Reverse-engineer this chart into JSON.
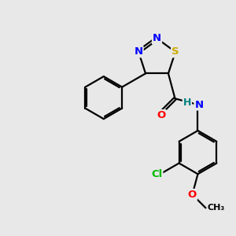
{
  "bg_color": "#e8e8e8",
  "bond_color": "#000000",
  "bond_width": 1.6,
  "atom_colors": {
    "N": "#0000ff",
    "S": "#ccaa00",
    "O": "#ff0000",
    "Cl": "#00bb00",
    "H": "#008080",
    "C": "#000000"
  },
  "font_size": 9.5,
  "dbo": 0.055,
  "title": ""
}
